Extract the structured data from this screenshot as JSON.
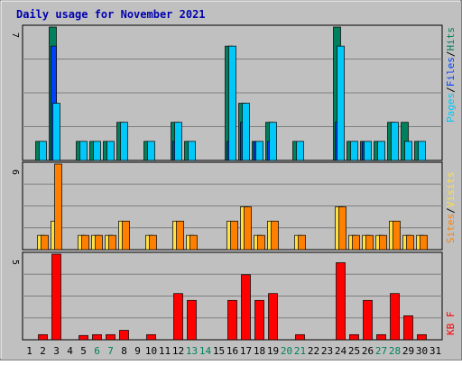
{
  "title": "Daily usage for November 2021",
  "colors": {
    "background": "#c0c0c0",
    "plot_area": "#c0c0c0",
    "hits": "#00805c",
    "files": "#0040ff",
    "pages": "#00c8f8",
    "visits": "#ff8000",
    "sites": "#ffe040",
    "kbytes": "#ff0000",
    "weekend_label": "#00805c",
    "title": "#0000b0"
  },
  "chart_data": [
    {
      "type": "bar",
      "name": "hits-files-pages",
      "categories": [
        "1",
        "2",
        "3",
        "4",
        "5",
        "6",
        "7",
        "8",
        "9",
        "10",
        "11",
        "12",
        "13",
        "14",
        "15",
        "16",
        "17",
        "18",
        "19",
        "20",
        "21",
        "22",
        "23",
        "24",
        "25",
        "26",
        "27",
        "28",
        "29",
        "30",
        "31"
      ],
      "ymax_label": "7",
      "ylim": [
        0,
        7
      ],
      "right_labels": [
        "Pages",
        "Files",
        "Hits"
      ],
      "series": [
        {
          "name": "Hits",
          "values": [
            0,
            1,
            7,
            0,
            1,
            1,
            1,
            2,
            0,
            1,
            0,
            2,
            1,
            0,
            0,
            6,
            3,
            1,
            2,
            0,
            1,
            0,
            0,
            7,
            1,
            1,
            1,
            2,
            2,
            1,
            0
          ]
        },
        {
          "name": "Files",
          "values": [
            0,
            0,
            6,
            0,
            0,
            0,
            0,
            0,
            0,
            0,
            0,
            1,
            0,
            0,
            0,
            1,
            2,
            1,
            1,
            0,
            0,
            0,
            0,
            2,
            0,
            1,
            0,
            0,
            0,
            0,
            0
          ]
        },
        {
          "name": "Pages",
          "values": [
            0,
            1,
            3,
            0,
            1,
            1,
            1,
            2,
            0,
            1,
            0,
            2,
            1,
            0,
            0,
            6,
            3,
            1,
            2,
            0,
            1,
            0,
            0,
            6,
            1,
            1,
            1,
            2,
            1,
            1,
            0
          ]
        }
      ]
    },
    {
      "type": "bar",
      "name": "sites-visits",
      "categories": [
        "1",
        "2",
        "3",
        "4",
        "5",
        "6",
        "7",
        "8",
        "9",
        "10",
        "11",
        "12",
        "13",
        "14",
        "15",
        "16",
        "17",
        "18",
        "19",
        "20",
        "21",
        "22",
        "23",
        "24",
        "25",
        "26",
        "27",
        "28",
        "29",
        "30",
        "31"
      ],
      "ymax_label": "6",
      "ylim": [
        0,
        6
      ],
      "right_labels": [
        "Sites",
        "Visits"
      ],
      "series": [
        {
          "name": "Sites",
          "values": [
            0,
            1,
            2,
            0,
            1,
            1,
            1,
            2,
            0,
            1,
            0,
            2,
            1,
            0,
            0,
            2,
            3,
            1,
            2,
            0,
            1,
            0,
            0,
            3,
            1,
            1,
            1,
            2,
            1,
            1,
            0
          ]
        },
        {
          "name": "Visits",
          "values": [
            0,
            1,
            6,
            0,
            1,
            1,
            1,
            2,
            0,
            1,
            0,
            2,
            1,
            0,
            0,
            2,
            3,
            1,
            2,
            0,
            1,
            0,
            0,
            3,
            1,
            1,
            1,
            2,
            1,
            1,
            0
          ]
        }
      ]
    },
    {
      "type": "bar",
      "name": "kbytes",
      "categories": [
        "1",
        "2",
        "3",
        "4",
        "5",
        "6",
        "7",
        "8",
        "9",
        "10",
        "11",
        "12",
        "13",
        "14",
        "15",
        "16",
        "17",
        "18",
        "19",
        "20",
        "21",
        "22",
        "23",
        "24",
        "25",
        "26",
        "27",
        "28",
        "29",
        "30",
        "31"
      ],
      "ymax_label": "5",
      "ylim": [
        0,
        5
      ],
      "right_labels": [
        "KB F"
      ],
      "series": [
        {
          "name": "KB F",
          "values": [
            0,
            0.3,
            5,
            0,
            0.25,
            0.3,
            0.3,
            0.55,
            0,
            0.3,
            0,
            2.7,
            2.3,
            0,
            0,
            2.3,
            3.8,
            2.3,
            2.7,
            0,
            0.3,
            0,
            0,
            4.5,
            0.3,
            2.3,
            0.3,
            2.7,
            1.4,
            0.3,
            0
          ]
        }
      ]
    }
  ],
  "weekend_days": [
    "6",
    "7",
    "13",
    "14",
    "20",
    "21",
    "27",
    "28"
  ]
}
